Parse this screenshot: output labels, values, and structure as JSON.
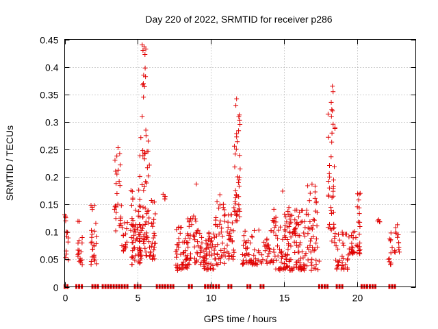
{
  "chart_data": {
    "type": "scatter",
    "title": "Day 220 of 2022, SRMTID for receiver p286",
    "xlabel": "GPS time / hours",
    "ylabel": "SRMTID / TECUs",
    "xlim": [
      0,
      24
    ],
    "ylim": [
      0,
      0.45
    ],
    "x_ticks": [
      0,
      5,
      10,
      15,
      20
    ],
    "x_tick_labels": [
      "0",
      "5",
      "10",
      "15",
      "20"
    ],
    "y_ticks": [
      0,
      0.05,
      0.1,
      0.15,
      0.2,
      0.25,
      0.3,
      0.35,
      0.4,
      0.45
    ],
    "y_tick_labels": [
      "0",
      "0.05",
      "0.1",
      "0.15",
      "0.2",
      "0.25",
      "0.3",
      "0.35",
      "0.4",
      "0.45"
    ],
    "grid": true,
    "series": [
      {
        "name": "SRMTID",
        "color": "#e00000",
        "marker": "plus",
        "clusters": [
          {
            "x0": 0.0,
            "x1": 0.3,
            "ymin": 0.045,
            "ymax": 0.14,
            "n": 14
          },
          {
            "x0": 0.9,
            "x1": 1.2,
            "ymin": 0.04,
            "ymax": 0.12,
            "n": 18
          },
          {
            "x0": 1.8,
            "x1": 2.2,
            "ymin": 0.04,
            "ymax": 0.155,
            "n": 26
          },
          {
            "x0": 3.4,
            "x1": 3.9,
            "ymin": 0.1,
            "ymax": 0.255,
            "n": 26
          },
          {
            "x0": 3.9,
            "x1": 4.3,
            "ymin": 0.06,
            "ymax": 0.12,
            "n": 16
          },
          {
            "x0": 4.5,
            "x1": 5.2,
            "ymin": 0.04,
            "ymax": 0.18,
            "n": 60
          },
          {
            "x0": 5.1,
            "x1": 5.8,
            "ymin": 0.05,
            "ymax": 0.3,
            "n": 60
          },
          {
            "x0": 5.3,
            "x1": 5.6,
            "ymin": 0.34,
            "ymax": 0.44,
            "n": 8
          },
          {
            "x0": 5.8,
            "x1": 6.2,
            "ymin": 0.05,
            "ymax": 0.16,
            "n": 26
          },
          {
            "x0": 6.7,
            "x1": 7.0,
            "ymin": 0.15,
            "ymax": 0.17,
            "n": 5
          },
          {
            "x0": 7.6,
            "x1": 8.4,
            "ymin": 0.03,
            "ymax": 0.11,
            "n": 48
          },
          {
            "x0": 8.4,
            "x1": 9.3,
            "ymin": 0.04,
            "ymax": 0.13,
            "n": 46
          },
          {
            "x0": 9.3,
            "x1": 10.3,
            "ymin": 0.03,
            "ymax": 0.1,
            "n": 58
          },
          {
            "x0": 10.3,
            "x1": 11.0,
            "ymin": 0.04,
            "ymax": 0.17,
            "n": 40
          },
          {
            "x0": 11.1,
            "x1": 11.6,
            "ymin": 0.05,
            "ymax": 0.15,
            "n": 30
          },
          {
            "x0": 11.6,
            "x1": 12.0,
            "ymin": 0.12,
            "ymax": 0.34,
            "n": 40
          },
          {
            "x0": 12.1,
            "x1": 13.3,
            "ymin": 0.04,
            "ymax": 0.11,
            "n": 50
          },
          {
            "x0": 13.4,
            "x1": 14.1,
            "ymin": 0.04,
            "ymax": 0.09,
            "n": 24
          },
          {
            "x0": 14.1,
            "x1": 15.4,
            "ymin": 0.03,
            "ymax": 0.15,
            "n": 80
          },
          {
            "x0": 15.4,
            "x1": 16.6,
            "ymin": 0.03,
            "ymax": 0.14,
            "n": 80
          },
          {
            "x0": 16.6,
            "x1": 17.4,
            "ymin": 0.03,
            "ymax": 0.2,
            "n": 46
          },
          {
            "x0": 18.0,
            "x1": 18.5,
            "ymin": 0.08,
            "ymax": 0.36,
            "n": 42
          },
          {
            "x0": 18.5,
            "x1": 19.6,
            "ymin": 0.03,
            "ymax": 0.1,
            "n": 40
          },
          {
            "x0": 19.6,
            "x1": 20.2,
            "ymin": 0.06,
            "ymax": 0.11,
            "n": 30
          },
          {
            "x0": 20.0,
            "x1": 20.2,
            "ymin": 0.11,
            "ymax": 0.17,
            "n": 8
          },
          {
            "x0": 21.4,
            "x1": 21.7,
            "ymin": 0.118,
            "ymax": 0.122,
            "n": 3
          },
          {
            "x0": 22.1,
            "x1": 22.4,
            "ymin": 0.04,
            "ymax": 0.1,
            "n": 12
          },
          {
            "x0": 22.5,
            "x1": 22.9,
            "ymin": 0.06,
            "ymax": 0.12,
            "n": 14
          }
        ],
        "highlights": [
          {
            "x": 5.3,
            "y": 0.44
          },
          {
            "x": 5.35,
            "y": 0.43
          },
          {
            "x": 5.4,
            "y": 0.385
          },
          {
            "x": 5.38,
            "y": 0.37
          },
          {
            "x": 5.3,
            "y": 0.31
          },
          {
            "x": 5.55,
            "y": 0.285
          },
          {
            "x": 3.65,
            "y": 0.253
          },
          {
            "x": 9.0,
            "y": 0.187
          },
          {
            "x": 11.75,
            "y": 0.342
          },
          {
            "x": 11.7,
            "y": 0.33
          },
          {
            "x": 14.9,
            "y": 0.174
          },
          {
            "x": 18.3,
            "y": 0.365
          },
          {
            "x": 18.35,
            "y": 0.355
          },
          {
            "x": 18.3,
            "y": 0.32
          },
          {
            "x": 20.2,
            "y": 0.17
          },
          {
            "x": 21.4,
            "y": 0.12
          }
        ],
        "zero_x_ranges": [
          [
            0.0,
            0.3
          ],
          [
            0.8,
            1.3
          ],
          [
            1.9,
            2.3
          ],
          [
            2.6,
            4.4
          ],
          [
            4.8,
            5.3
          ],
          [
            6.3,
            7.6
          ],
          [
            8.5,
            8.8
          ],
          [
            9.6,
            10.6
          ],
          [
            11.2,
            11.5
          ],
          [
            12.5,
            12.8
          ],
          [
            13.4,
            13.7
          ],
          [
            17.4,
            18.1
          ],
          [
            18.6,
            19.0
          ],
          [
            20.3,
            21.3
          ],
          [
            22.2,
            22.6
          ]
        ]
      }
    ]
  }
}
